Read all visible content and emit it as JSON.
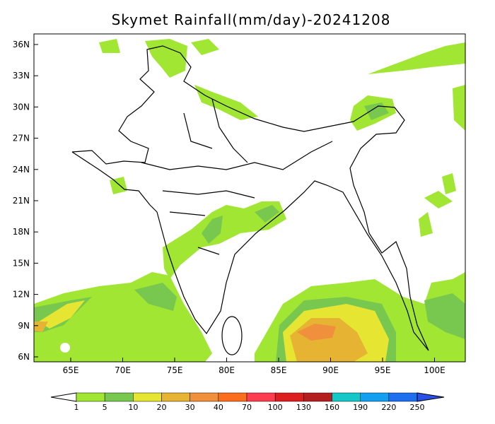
{
  "map": {
    "title": "Skymet Rainfall(mm/day)-20241208",
    "lat_labels": [
      "36N",
      "33N",
      "30N",
      "27N",
      "24N",
      "21N",
      "18N",
      "15N",
      "12N",
      "9N",
      "6N"
    ],
    "lon_labels": [
      "65E",
      "70E",
      "75E",
      "80E",
      "85E",
      "90E",
      "95E",
      "100E"
    ],
    "colorbar_labels": [
      "1",
      "5",
      "10",
      "20",
      "30",
      "40",
      "70",
      "100",
      "130",
      "160",
      "190",
      "220",
      "250"
    ]
  }
}
